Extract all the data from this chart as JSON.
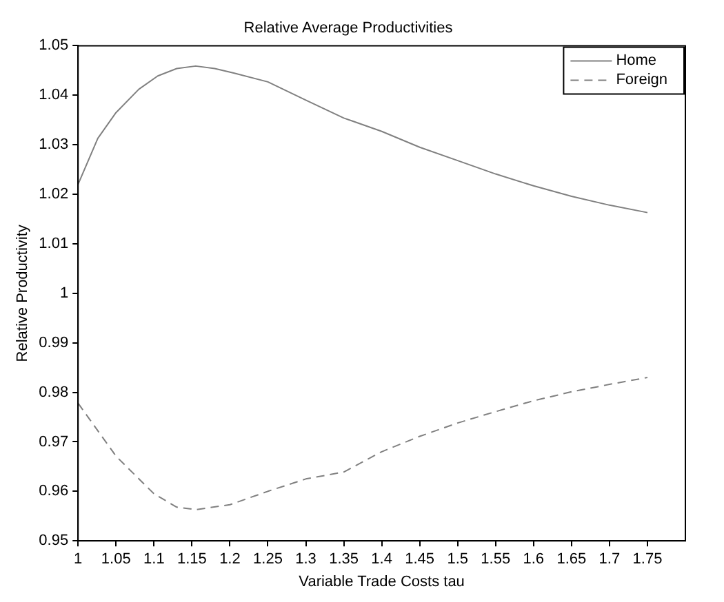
{
  "chart_data": {
    "type": "line",
    "title": "Relative Average Productivities",
    "xlabel": "Variable Trade Costs tau",
    "ylabel": "Relative Productivity",
    "xlim": [
      1,
      1.8
    ],
    "xticks": [
      1,
      1.05,
      1.1,
      1.15,
      1.2,
      1.25,
      1.3,
      1.35,
      1.4,
      1.45,
      1.5,
      1.55,
      1.6,
      1.65,
      1.7,
      1.75
    ],
    "ylim": [
      0.95,
      1.05
    ],
    "yticks": [
      0.95,
      0.96,
      0.97,
      0.98,
      0.99,
      1,
      1.01,
      1.02,
      1.03,
      1.04,
      1.05
    ],
    "grid": false,
    "legend": "top right",
    "marker": "none",
    "series": [
      {
        "name": "Home",
        "color": "#808080",
        "line_style": "solid",
        "x": [
          1,
          1.026,
          1.05,
          1.08,
          1.105,
          1.13,
          1.155,
          1.18,
          1.205,
          1.25,
          1.3,
          1.35,
          1.4,
          1.45,
          1.5,
          1.55,
          1.6,
          1.65,
          1.7,
          1.75
        ],
        "values": [
          1.022,
          1.0313,
          1.0365,
          1.0412,
          1.0439,
          1.0454,
          1.0459,
          1.0454,
          1.0445,
          1.0427,
          1.039,
          1.0354,
          1.0327,
          1.0295,
          1.0268,
          1.0241,
          1.0217,
          1.0196,
          1.0178,
          1.0163
        ]
      },
      {
        "name": "Foreign",
        "color": "#808080",
        "line_style": "dashed",
        "x": [
          1,
          1.05,
          1.1,
          1.13,
          1.155,
          1.2,
          1.25,
          1.3,
          1.35,
          1.4,
          1.45,
          1.5,
          1.55,
          1.6,
          1.65,
          1.7,
          1.75
        ],
        "values": [
          0.9778,
          0.9671,
          0.9595,
          0.9568,
          0.9563,
          0.9573,
          0.96,
          0.9625,
          0.9639,
          0.968,
          0.9711,
          0.9738,
          0.9761,
          0.9783,
          0.9801,
          0.9816,
          0.983
        ]
      }
    ]
  }
}
